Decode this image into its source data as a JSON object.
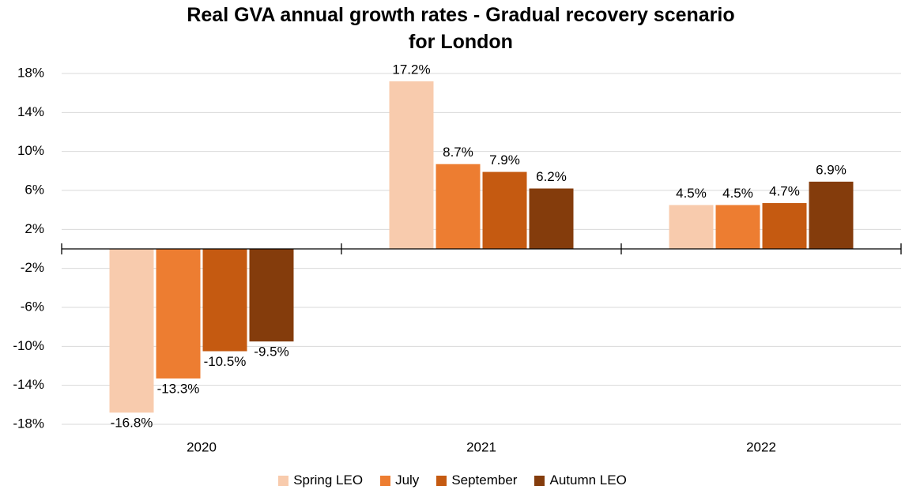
{
  "chart_data": {
    "type": "bar",
    "title": "Real GVA annual growth rates - Gradual recovery scenario for London",
    "categories": [
      "2020",
      "2021",
      "2022"
    ],
    "series": [
      {
        "name": "Spring LEO",
        "color": "#f8cbad",
        "values": [
          -16.8,
          17.2,
          4.5
        ],
        "value_labels": [
          "-16.8%",
          "17.2%",
          "4.5%"
        ]
      },
      {
        "name": "July",
        "color": "#ed7d31",
        "values": [
          -13.3,
          8.7,
          4.5
        ],
        "value_labels": [
          "-13.3%",
          "8.7%",
          "4.5%"
        ]
      },
      {
        "name": "September",
        "color": "#c55a11",
        "values": [
          -10.5,
          7.9,
          4.7
        ],
        "value_labels": [
          "-10.5%",
          "7.9%",
          "4.7%"
        ]
      },
      {
        "name": "Autumn LEO",
        "color": "#843c0c",
        "values": [
          -9.5,
          6.2,
          6.9
        ],
        "value_labels": [
          "-9.5%",
          "6.2%",
          "6.9%"
        ]
      }
    ],
    "ylim": [
      -18,
      18
    ],
    "yticks": [
      {
        "value": -18,
        "label": "-18%"
      },
      {
        "value": -14,
        "label": "-14%"
      },
      {
        "value": -10,
        "label": "-10%"
      },
      {
        "value": -6,
        "label": "-6%"
      },
      {
        "value": -2,
        "label": "-2%"
      },
      {
        "value": 2,
        "label": "2%"
      },
      {
        "value": 6,
        "label": "6%"
      },
      {
        "value": 10,
        "label": "10%"
      },
      {
        "value": 14,
        "label": "14%"
      },
      {
        "value": 18,
        "label": "18%"
      }
    ],
    "grid": true,
    "legend": "bottom"
  }
}
